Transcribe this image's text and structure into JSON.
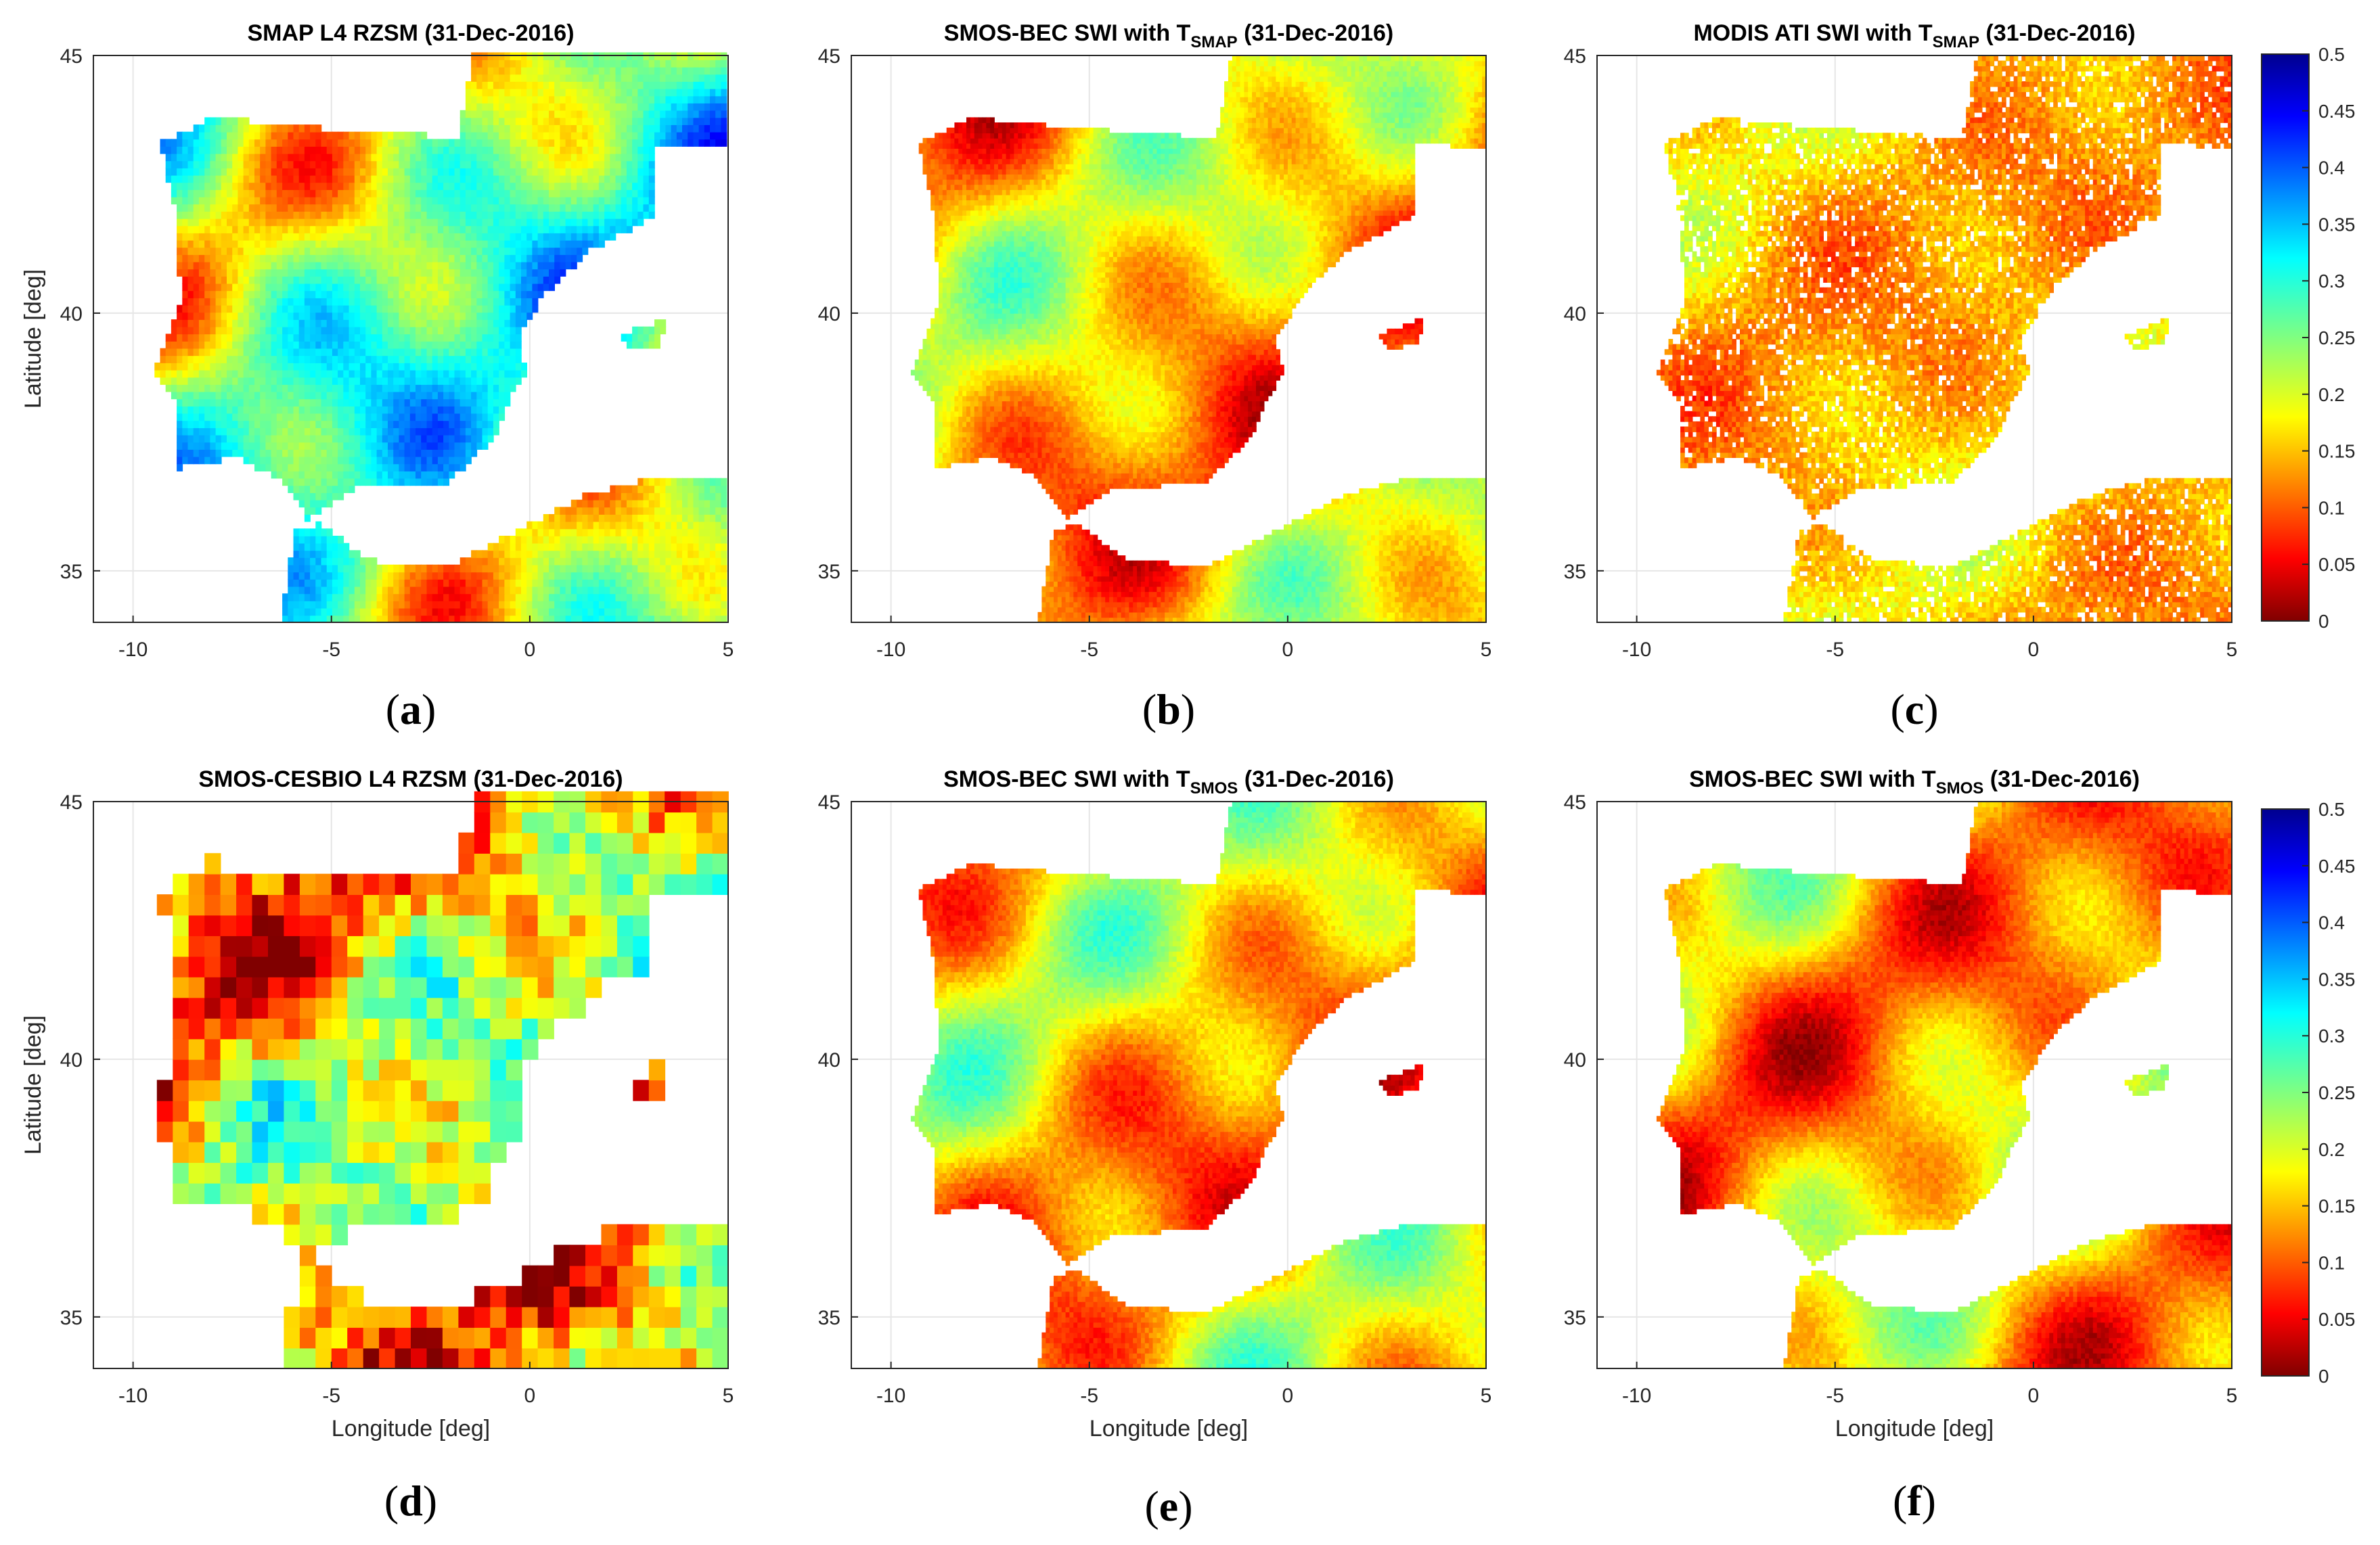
{
  "figure": {
    "date": "31-Dec-2016",
    "x_axis_label": "Longitude [deg]",
    "y_axis_label": "Latitude [deg]",
    "x_ticks": [
      -10,
      -5,
      0,
      5
    ],
    "y_ticks": [
      35,
      40,
      45
    ],
    "colorbar": {
      "ticks": [
        "0",
        "0.05",
        "0.1",
        "0.15",
        "0.2",
        "0.25",
        "0.3",
        "0.35",
        "0.4",
        "0.45",
        "0.5"
      ],
      "range": [
        0,
        0.5
      ],
      "colormap": "jet-reversed (dark red = 0, dark blue = 0.5)"
    }
  },
  "chart_data": [
    {
      "type": "heatmap",
      "panel": "a",
      "title": {
        "main": "SMAP L4 RZSM (31-Dec-2016)",
        "subscript": "",
        "suffix": ""
      },
      "xlabel": "",
      "ylabel": "Latitude [deg]",
      "xlim": [
        -11,
        5
      ],
      "ylim": [
        34,
        45
      ],
      "variable": "root-zone soil moisture",
      "typical_value": 0.25,
      "value_range": [
        0.05,
        0.45
      ],
      "panel_label": "(a)"
    },
    {
      "type": "heatmap",
      "panel": "b",
      "title": {
        "main": "SMOS-BEC SWI with T",
        "subscript": "SMAP",
        "suffix": " (31-Dec-2016)"
      },
      "xlabel": "",
      "ylabel": "",
      "xlim": [
        -11,
        5
      ],
      "ylim": [
        34,
        45
      ],
      "variable": "soil water index",
      "typical_value": 0.15,
      "value_range": [
        0.05,
        0.35
      ],
      "panel_label": "(b)"
    },
    {
      "type": "heatmap",
      "panel": "c",
      "title": {
        "main": "MODIS ATI SWI with T",
        "subscript": "SMAP",
        "suffix": " (31-Dec-2016)"
      },
      "xlabel": "",
      "ylabel": "",
      "xlim": [
        -11,
        5
      ],
      "ylim": [
        34,
        45
      ],
      "variable": "soil water index",
      "typical_value": 0.15,
      "value_range": [
        0.1,
        0.25
      ],
      "panel_label": "(c)"
    },
    {
      "type": "heatmap",
      "panel": "d",
      "title": {
        "main": "SMOS-CESBIO L4 RZSM (31-Dec-2016)",
        "subscript": "",
        "suffix": ""
      },
      "xlabel": "Longitude [deg]",
      "ylabel": "Latitude [deg]",
      "xlim": [
        -11,
        5
      ],
      "ylim": [
        34,
        45
      ],
      "variable": "root-zone soil moisture",
      "typical_value": 0.17,
      "value_range": [
        0.0,
        0.4
      ],
      "panel_label": "(d)"
    },
    {
      "type": "heatmap",
      "panel": "e",
      "title": {
        "main": "SMOS-BEC SWI with T",
        "subscript": "SMOS",
        "suffix": " (31-Dec-2016)"
      },
      "xlabel": "Longitude [deg]",
      "ylabel": "",
      "xlim": [
        -11,
        5
      ],
      "ylim": [
        34,
        45
      ],
      "variable": "soil water index",
      "typical_value": 0.15,
      "value_range": [
        0.05,
        0.35
      ],
      "panel_label": "(e)"
    },
    {
      "type": "heatmap",
      "panel": "f",
      "title": {
        "main": "SMOS-BEC SWI with T",
        "subscript": "SMOS",
        "suffix": " (31-Dec-2016)"
      },
      "xlabel": "Longitude [deg]",
      "ylabel": "",
      "xlim": [
        -11,
        5
      ],
      "ylim": [
        34,
        45
      ],
      "variable": "soil water index",
      "typical_value": 0.15,
      "value_range": [
        0.05,
        0.35
      ],
      "panel_label": "(f)"
    }
  ]
}
